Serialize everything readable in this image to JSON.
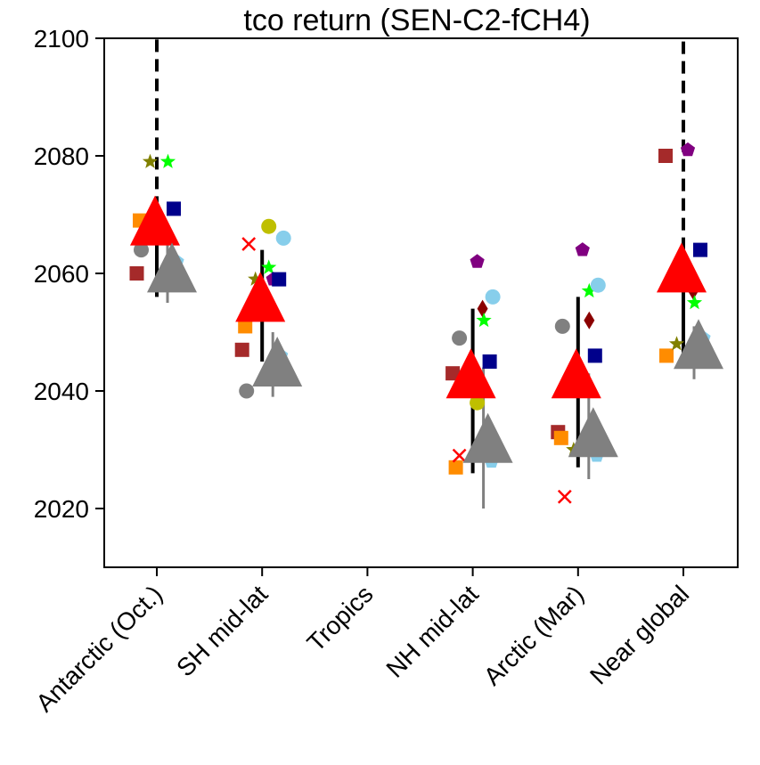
{
  "chart_data": {
    "type": "scatter",
    "title": "tco return (SEN-C2-fCH4)",
    "xlabel": "",
    "ylabel": "",
    "categories": [
      "Antarctic (Oct.)",
      "SH mid-lat",
      "Tropics",
      "NH mid-lat",
      "Arctic (Mar)",
      "Near global"
    ],
    "ylim": [
      2010,
      2100
    ],
    "yticks": [
      2020,
      2040,
      2060,
      2080,
      2100
    ],
    "grid": false,
    "colors": {
      "brown": "#a52a2a",
      "orange": "#ff8c00",
      "gray": "#808080",
      "olive": "#808000",
      "lime": "#00ff00",
      "navy": "#00008b",
      "skyblue": "#87ceeb",
      "yellow": "#bfbf00",
      "red": "#ff0000",
      "purple": "#800080",
      "darkred": "#8b0000",
      "black": "#000000"
    },
    "mean_markers": [
      {
        "category": "Antarctic (Oct.)",
        "red": 2069,
        "gray": 2061
      },
      {
        "category": "SH mid-lat",
        "red": 2056,
        "gray": 2045
      },
      {
        "category": "NH mid-lat",
        "red": 2043,
        "gray": 2032
      },
      {
        "category": "Arctic (Mar)",
        "red": 2043,
        "gray": 2033
      },
      {
        "category": "Near global",
        "red": 2061,
        "gray": 2048
      }
    ],
    "range_bars": [
      {
        "category": "Antarctic (Oct.)",
        "series": "black",
        "low": 2056,
        "high": 2071,
        "dashed_to": 2100
      },
      {
        "category": "Antarctic (Oct.)",
        "series": "gray",
        "low": 2055,
        "high": 2066
      },
      {
        "category": "SH mid-lat",
        "series": "black",
        "low": 2045,
        "high": 2064
      },
      {
        "category": "SH mid-lat",
        "series": "gray",
        "low": 2039,
        "high": 2050
      },
      {
        "category": "NH mid-lat",
        "series": "black",
        "low": 2026,
        "high": 2054
      },
      {
        "category": "NH mid-lat",
        "series": "gray",
        "low": 2020,
        "high": 2044
      },
      {
        "category": "Arctic (Mar)",
        "series": "black",
        "low": 2027,
        "high": 2056
      },
      {
        "category": "Arctic (Mar)",
        "series": "gray",
        "low": 2025,
        "high": 2043
      },
      {
        "category": "Near global",
        "series": "black",
        "low": 2045,
        "high": 2064,
        "dashed_to": 2100
      },
      {
        "category": "Near global",
        "series": "gray",
        "low": 2042,
        "high": 2051
      }
    ],
    "points": [
      {
        "category": "Antarctic (Oct.)",
        "offset": -0.45,
        "y": 2060,
        "marker": "square",
        "color": "brown"
      },
      {
        "category": "Antarctic (Oct.)",
        "offset": -0.38,
        "y": 2069,
        "marker": "square",
        "color": "orange"
      },
      {
        "category": "Antarctic (Oct.)",
        "offset": -0.35,
        "y": 2064,
        "marker": "circle",
        "color": "gray"
      },
      {
        "category": "Antarctic (Oct.)",
        "offset": -0.15,
        "y": 2079,
        "marker": "star",
        "color": "olive"
      },
      {
        "category": "Antarctic (Oct.)",
        "offset": 0.25,
        "y": 2079,
        "marker": "star",
        "color": "lime"
      },
      {
        "category": "Antarctic (Oct.)",
        "offset": 0.38,
        "y": 2071,
        "marker": "square",
        "color": "navy"
      },
      {
        "category": "Antarctic (Oct.)",
        "offset": 0.45,
        "y": 2062,
        "marker": "pentagon",
        "color": "skyblue"
      },
      {
        "category": "SH mid-lat",
        "offset": -0.45,
        "y": 2047,
        "marker": "square",
        "color": "brown"
      },
      {
        "category": "SH mid-lat",
        "offset": -0.38,
        "y": 2051,
        "marker": "square",
        "color": "orange"
      },
      {
        "category": "SH mid-lat",
        "offset": -0.35,
        "y": 2040,
        "marker": "circle",
        "color": "gray"
      },
      {
        "category": "SH mid-lat",
        "offset": -0.3,
        "y": 2065,
        "marker": "x",
        "color": "red"
      },
      {
        "category": "SH mid-lat",
        "offset": -0.15,
        "y": 2059,
        "marker": "star",
        "color": "olive"
      },
      {
        "category": "SH mid-lat",
        "offset": 0.15,
        "y": 2061,
        "marker": "star",
        "color": "lime"
      },
      {
        "category": "SH mid-lat",
        "offset": 0.15,
        "y": 2068,
        "marker": "circle",
        "color": "yellow"
      },
      {
        "category": "SH mid-lat",
        "offset": 0.25,
        "y": 2059,
        "marker": "pentagon",
        "color": "purple"
      },
      {
        "category": "SH mid-lat",
        "offset": 0.38,
        "y": 2059,
        "marker": "square",
        "color": "navy"
      },
      {
        "category": "SH mid-lat",
        "offset": 0.48,
        "y": 2066,
        "marker": "circle",
        "color": "skyblue"
      },
      {
        "category": "SH mid-lat",
        "offset": 0.42,
        "y": 2046,
        "marker": "pentagon",
        "color": "skyblue"
      },
      {
        "category": "NH mid-lat",
        "offset": -0.45,
        "y": 2043,
        "marker": "square",
        "color": "brown"
      },
      {
        "category": "NH mid-lat",
        "offset": -0.38,
        "y": 2027,
        "marker": "square",
        "color": "orange"
      },
      {
        "category": "NH mid-lat",
        "offset": -0.3,
        "y": 2049,
        "marker": "circle",
        "color": "gray"
      },
      {
        "category": "NH mid-lat",
        "offset": -0.3,
        "y": 2029,
        "marker": "x",
        "color": "red"
      },
      {
        "category": "NH mid-lat",
        "offset": 0.1,
        "y": 2038,
        "marker": "circle",
        "color": "yellow"
      },
      {
        "category": "NH mid-lat",
        "offset": 0.1,
        "y": 2062,
        "marker": "pentagon",
        "color": "purple"
      },
      {
        "category": "NH mid-lat",
        "offset": 0.22,
        "y": 2054,
        "marker": "diamond",
        "color": "darkred"
      },
      {
        "category": "NH mid-lat",
        "offset": 0.25,
        "y": 2052,
        "marker": "star",
        "color": "lime"
      },
      {
        "category": "NH mid-lat",
        "offset": 0.38,
        "y": 2045,
        "marker": "square",
        "color": "navy"
      },
      {
        "category": "NH mid-lat",
        "offset": 0.45,
        "y": 2056,
        "marker": "circle",
        "color": "skyblue"
      },
      {
        "category": "NH mid-lat",
        "offset": 0.42,
        "y": 2028,
        "marker": "pentagon",
        "color": "skyblue"
      },
      {
        "category": "Arctic (Mar)",
        "offset": -0.45,
        "y": 2033,
        "marker": "square",
        "color": "brown"
      },
      {
        "category": "Arctic (Mar)",
        "offset": -0.38,
        "y": 2032,
        "marker": "square",
        "color": "orange"
      },
      {
        "category": "Arctic (Mar)",
        "offset": -0.35,
        "y": 2051,
        "marker": "circle",
        "color": "gray"
      },
      {
        "category": "Arctic (Mar)",
        "offset": -0.3,
        "y": 2022,
        "marker": "x",
        "color": "red"
      },
      {
        "category": "Arctic (Mar)",
        "offset": -0.1,
        "y": 2030,
        "marker": "star",
        "color": "olive"
      },
      {
        "category": "Arctic (Mar)",
        "offset": 0.1,
        "y": 2064,
        "marker": "pentagon",
        "color": "purple"
      },
      {
        "category": "Arctic (Mar)",
        "offset": 0.25,
        "y": 2052,
        "marker": "diamond",
        "color": "darkred"
      },
      {
        "category": "Arctic (Mar)",
        "offset": 0.25,
        "y": 2057,
        "marker": "star",
        "color": "lime"
      },
      {
        "category": "Arctic (Mar)",
        "offset": 0.38,
        "y": 2046,
        "marker": "square",
        "color": "navy"
      },
      {
        "category": "Arctic (Mar)",
        "offset": 0.45,
        "y": 2058,
        "marker": "circle",
        "color": "skyblue"
      },
      {
        "category": "Arctic (Mar)",
        "offset": 0.42,
        "y": 2029,
        "marker": "pentagon",
        "color": "skyblue"
      },
      {
        "category": "Near global",
        "offset": -0.4,
        "y": 2080,
        "marker": "square",
        "color": "brown"
      },
      {
        "category": "Near global",
        "offset": -0.38,
        "y": 2046,
        "marker": "square",
        "color": "orange"
      },
      {
        "category": "Near global",
        "offset": -0.15,
        "y": 2048,
        "marker": "star",
        "color": "olive"
      },
      {
        "category": "Near global",
        "offset": 0.1,
        "y": 2081,
        "marker": "pentagon",
        "color": "purple"
      },
      {
        "category": "Near global",
        "offset": 0.22,
        "y": 2057,
        "marker": "diamond",
        "color": "darkred"
      },
      {
        "category": "Near global",
        "offset": 0.25,
        "y": 2055,
        "marker": "star",
        "color": "lime"
      },
      {
        "category": "Near global",
        "offset": 0.38,
        "y": 2064,
        "marker": "square",
        "color": "navy"
      },
      {
        "category": "Near global",
        "offset": 0.45,
        "y": 2049,
        "marker": "pentagon",
        "color": "skyblue"
      }
    ]
  }
}
